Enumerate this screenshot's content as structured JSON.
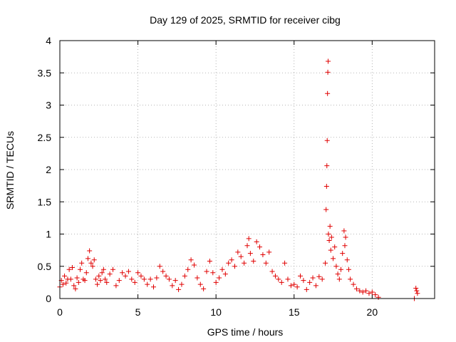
{
  "chart_data": {
    "type": "scatter",
    "title": "Day 129 of 2025, SRMTID for receiver cibg",
    "xlabel": "GPS time / hours",
    "ylabel": "SRMTID / TECUs",
    "xlim": [
      0,
      24
    ],
    "ylim": [
      0,
      4
    ],
    "xticks": [
      0,
      5,
      10,
      15,
      20
    ],
    "xtick_labels": [
      "0",
      "5",
      "10",
      "15",
      "20"
    ],
    "yticks": [
      0,
      0.5,
      1,
      1.5,
      2,
      2.5,
      3,
      3.5,
      4
    ],
    "ytick_labels": [
      "0",
      "0.5",
      "1",
      "1.5",
      "2",
      "2.5",
      "3",
      "3.5",
      "4"
    ],
    "grid": true,
    "marker": "+",
    "color": "#e00000",
    "series": [
      {
        "name": "SRMTID",
        "points": [
          [
            0.0,
            0.18
          ],
          [
            0.1,
            0.28
          ],
          [
            0.2,
            0.22
          ],
          [
            0.3,
            0.35
          ],
          [
            0.4,
            0.24
          ],
          [
            0.5,
            0.3
          ],
          [
            0.6,
            0.45
          ],
          [
            0.7,
            0.3
          ],
          [
            0.8,
            0.48
          ],
          [
            0.9,
            0.2
          ],
          [
            1.0,
            0.15
          ],
          [
            1.1,
            0.32
          ],
          [
            1.2,
            0.25
          ],
          [
            1.3,
            0.45
          ],
          [
            1.4,
            0.55
          ],
          [
            1.5,
            0.3
          ],
          [
            1.6,
            0.28
          ],
          [
            1.7,
            0.4
          ],
          [
            1.8,
            0.62
          ],
          [
            1.9,
            0.74
          ],
          [
            2.0,
            0.55
          ],
          [
            2.1,
            0.5
          ],
          [
            2.2,
            0.6
          ],
          [
            2.3,
            0.3
          ],
          [
            2.4,
            0.22
          ],
          [
            2.5,
            0.35
          ],
          [
            2.6,
            0.28
          ],
          [
            2.7,
            0.4
          ],
          [
            2.8,
            0.45
          ],
          [
            2.9,
            0.3
          ],
          [
            3.0,
            0.25
          ],
          [
            3.2,
            0.38
          ],
          [
            3.4,
            0.45
          ],
          [
            3.6,
            0.2
          ],
          [
            3.8,
            0.28
          ],
          [
            4.0,
            0.4
          ],
          [
            4.2,
            0.35
          ],
          [
            4.4,
            0.42
          ],
          [
            4.6,
            0.3
          ],
          [
            4.8,
            0.25
          ],
          [
            5.0,
            0.4
          ],
          [
            5.2,
            0.35
          ],
          [
            5.4,
            0.3
          ],
          [
            5.6,
            0.22
          ],
          [
            5.8,
            0.3
          ],
          [
            6.0,
            0.18
          ],
          [
            6.2,
            0.32
          ],
          [
            6.4,
            0.5
          ],
          [
            6.6,
            0.42
          ],
          [
            6.8,
            0.35
          ],
          [
            7.0,
            0.3
          ],
          [
            7.2,
            0.2
          ],
          [
            7.4,
            0.28
          ],
          [
            7.6,
            0.14
          ],
          [
            7.8,
            0.22
          ],
          [
            8.0,
            0.35
          ],
          [
            8.2,
            0.45
          ],
          [
            8.4,
            0.6
          ],
          [
            8.6,
            0.52
          ],
          [
            8.8,
            0.32
          ],
          [
            9.0,
            0.22
          ],
          [
            9.2,
            0.15
          ],
          [
            9.4,
            0.42
          ],
          [
            9.6,
            0.58
          ],
          [
            9.8,
            0.4
          ],
          [
            10.0,
            0.25
          ],
          [
            10.2,
            0.32
          ],
          [
            10.4,
            0.45
          ],
          [
            10.6,
            0.38
          ],
          [
            10.8,
            0.55
          ],
          [
            11.0,
            0.6
          ],
          [
            11.2,
            0.5
          ],
          [
            11.4,
            0.72
          ],
          [
            11.6,
            0.65
          ],
          [
            11.8,
            0.55
          ],
          [
            12.0,
            0.82
          ],
          [
            12.1,
            0.93
          ],
          [
            12.2,
            0.7
          ],
          [
            12.4,
            0.58
          ],
          [
            12.6,
            0.88
          ],
          [
            12.8,
            0.8
          ],
          [
            13.0,
            0.68
          ],
          [
            13.2,
            0.55
          ],
          [
            13.4,
            0.72
          ],
          [
            13.6,
            0.42
          ],
          [
            13.8,
            0.35
          ],
          [
            14.0,
            0.3
          ],
          [
            14.2,
            0.25
          ],
          [
            14.4,
            0.55
          ],
          [
            14.6,
            0.3
          ],
          [
            14.8,
            0.2
          ],
          [
            15.0,
            0.22
          ],
          [
            15.2,
            0.18
          ],
          [
            15.4,
            0.35
          ],
          [
            15.6,
            0.28
          ],
          [
            15.8,
            0.14
          ],
          [
            16.0,
            0.25
          ],
          [
            16.2,
            0.32
          ],
          [
            16.4,
            0.2
          ],
          [
            16.6,
            0.34
          ],
          [
            16.8,
            0.3
          ],
          [
            17.0,
            0.55
          ],
          [
            17.05,
            1.38
          ],
          [
            17.08,
            1.74
          ],
          [
            17.1,
            2.06
          ],
          [
            17.12,
            2.45
          ],
          [
            17.14,
            3.18
          ],
          [
            17.16,
            3.51
          ],
          [
            17.18,
            3.68
          ],
          [
            17.2,
            1.0
          ],
          [
            17.25,
            0.9
          ],
          [
            17.3,
            1.12
          ],
          [
            17.35,
            0.75
          ],
          [
            17.4,
            0.95
          ],
          [
            17.5,
            0.62
          ],
          [
            17.6,
            0.8
          ],
          [
            17.7,
            0.5
          ],
          [
            17.8,
            0.38
          ],
          [
            17.9,
            0.3
          ],
          [
            18.0,
            0.45
          ],
          [
            18.1,
            0.7
          ],
          [
            18.2,
            1.05
          ],
          [
            18.25,
            0.82
          ],
          [
            18.3,
            0.95
          ],
          [
            18.4,
            0.6
          ],
          [
            18.5,
            0.45
          ],
          [
            18.6,
            0.3
          ],
          [
            18.8,
            0.22
          ],
          [
            19.0,
            0.15
          ],
          [
            19.2,
            0.12
          ],
          [
            19.4,
            0.1
          ],
          [
            19.6,
            0.12
          ],
          [
            19.8,
            0.08
          ],
          [
            20.0,
            0.1
          ],
          [
            20.2,
            0.06
          ],
          [
            20.4,
            0.02
          ],
          [
            22.7,
            0.0
          ],
          [
            22.8,
            0.16
          ],
          [
            22.85,
            0.12
          ],
          [
            22.9,
            0.08
          ]
        ]
      }
    ]
  }
}
